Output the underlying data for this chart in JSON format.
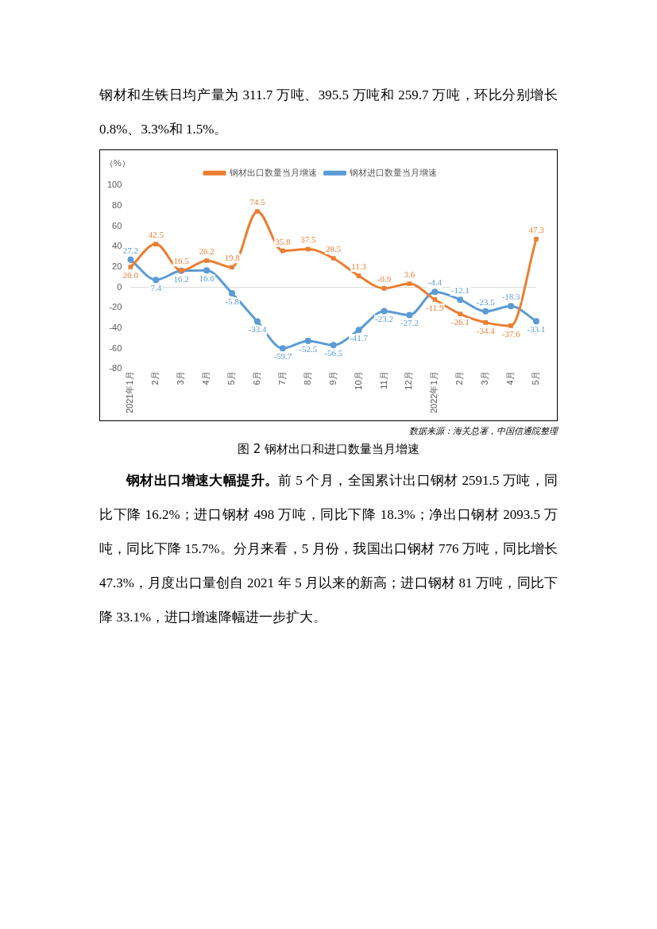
{
  "chart_data": {
    "type": "line",
    "title": "图 2 钢材出口和进口数量当月增速",
    "ylabel": "（%）",
    "categories": [
      "2021年1月",
      "2月",
      "3月",
      "4月",
      "5月",
      "6月",
      "7月",
      "8月",
      "9月",
      "10月",
      "11月",
      "12月",
      "2022年1月",
      "2月",
      "3月",
      "4月",
      "5月"
    ],
    "series": [
      {
        "name": "钢材出口数量当月增速",
        "color": "#ed7d31",
        "marker": "square",
        "values": [
          20.0,
          42.5,
          16.5,
          26.2,
          19.8,
          74.5,
          35.8,
          37.5,
          28.5,
          11.3,
          -0.9,
          3.6,
          -11.9,
          -26.1,
          -34.4,
          -37.6,
          47.3
        ],
        "value_labels": [
          "20.0",
          "42.5",
          "16.5",
          "26.2",
          "19.8",
          "74.5",
          "35.8",
          "37.5",
          "28.5",
          "11.3",
          "-0.9",
          "3.6",
          "-11.9",
          "-26.1",
          "-34.4",
          "-37.6",
          "47.3"
        ]
      },
      {
        "name": "钢材进口数量当月增速",
        "color": "#5b9bd5",
        "marker": "circle",
        "values": [
          27.2,
          7.4,
          16.2,
          16.6,
          -5.8,
          -33.4,
          -59.7,
          -52.5,
          -56.5,
          -41.7,
          -23.2,
          -27.2,
          -4.4,
          -12.1,
          -23.5,
          -18.3,
          -33.1
        ],
        "value_labels": [
          "27.2",
          "7.4",
          "16.2",
          "16.6",
          "-5.8",
          "-33.4",
          "-59.7",
          "-52.5",
          "-56.5",
          "-41.7",
          "-23.2",
          "-27.2",
          "-4.4",
          "-12.1",
          "-23.5",
          "-18.3",
          "-33.1"
        ]
      }
    ],
    "ylim": [
      -80,
      100
    ],
    "yticks": [
      -80,
      -60,
      -40,
      -20,
      0,
      20,
      40,
      60,
      80,
      100
    ],
    "grid": false,
    "legend": "top",
    "ref_lines": [
      {
        "axis": "y",
        "value": 0,
        "color": "#d9d9d9"
      }
    ],
    "annotations": [
      "钢材和生铁日均产量为 311.7 万吨、395.5 万吨和 259.7 万吨，环比分别增长 0.8%、3.3%和 1.5%。",
      "数据来源：海关总署，中国信通院整理",
      "钢材出口增速大幅提升。",
      "前 5 个月，全国累计出口钢材 2591.5 万吨，同比下降 16.2%；进口钢材 498 万吨，同比下降 18.3%；净出口钢材 2093.5 万吨，同比下降 15.7%。分月来看，5 月份，我国出口钢材 776 万吨，同比增长 47.3%，月度出口量创自 2021 年 5 月以来的新高；进口钢材 81 万吨，同比下降 33.1%，进口增速降幅进一步扩大。"
    ]
  }
}
